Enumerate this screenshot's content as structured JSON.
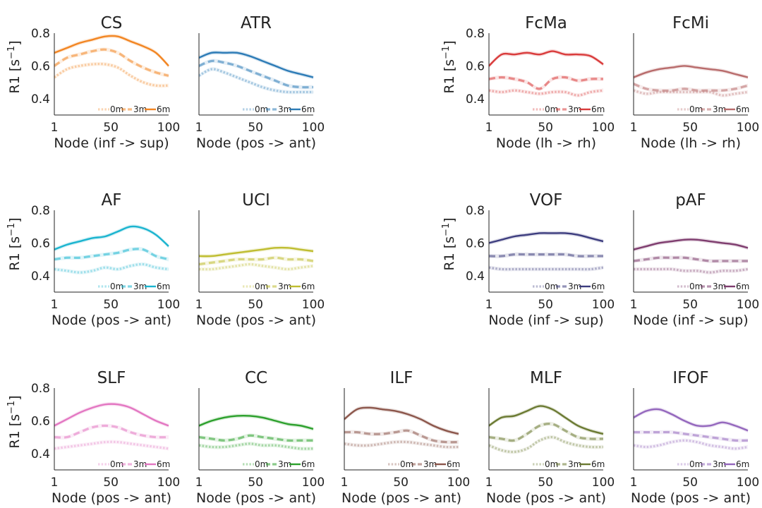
{
  "chart_data": {
    "type": "line",
    "layout": "small-multiples grid (3 rows x 5 columns)",
    "y_axis_label": "R1 [s",
    "y_axis_label_sup": "−1",
    "y_axis_label_close": "]",
    "ylim": [
      0.3,
      0.8
    ],
    "yticks": [
      "0.4",
      "0.6",
      "0.8"
    ],
    "xlim": [
      1,
      100
    ],
    "xticks": [
      "1",
      "50",
      "100"
    ],
    "legend_labels": [
      "0m",
      "3m",
      "6m"
    ],
    "legend_placement": "lower-right",
    "x_nodes": [
      1,
      12,
      23,
      34,
      45,
      56,
      67,
      78,
      89,
      100
    ],
    "panels": [
      {
        "row": 0,
        "col": 0,
        "title": "CS",
        "xlabel": "Node (inf -> sup)",
        "ylabels": true,
        "color": "#f28522",
        "series": [
          {
            "name": "0m",
            "values": [
              0.53,
              0.58,
              0.6,
              0.61,
              0.61,
              0.59,
              0.54,
              0.5,
              0.48,
              0.48
            ]
          },
          {
            "name": "3m",
            "values": [
              0.6,
              0.65,
              0.67,
              0.69,
              0.7,
              0.68,
              0.63,
              0.59,
              0.56,
              0.54
            ]
          },
          {
            "name": "6m",
            "values": [
              0.68,
              0.71,
              0.74,
              0.76,
              0.78,
              0.78,
              0.75,
              0.72,
              0.68,
              0.6
            ]
          }
        ]
      },
      {
        "row": 0,
        "col": 1,
        "title": "ATR",
        "xlabel": "Node (pos -> ant)",
        "ylabels": false,
        "color": "#2c7bb6",
        "series": [
          {
            "name": "0m",
            "values": [
              0.54,
              0.58,
              0.56,
              0.53,
              0.5,
              0.47,
              0.45,
              0.44,
              0.44,
              0.44
            ]
          },
          {
            "name": "3m",
            "values": [
              0.6,
              0.63,
              0.62,
              0.6,
              0.57,
              0.54,
              0.51,
              0.48,
              0.47,
              0.47
            ]
          },
          {
            "name": "6m",
            "values": [
              0.65,
              0.68,
              0.68,
              0.68,
              0.66,
              0.63,
              0.6,
              0.57,
              0.55,
              0.53
            ]
          }
        ]
      },
      {
        "row": 0,
        "col": 3,
        "title": "FcMa",
        "xlabel": "Node (lh -> rh)",
        "ylabels": true,
        "color": "#d93b3b",
        "series": [
          {
            "name": "0m",
            "values": [
              0.45,
              0.44,
              0.45,
              0.44,
              0.43,
              0.44,
              0.44,
              0.42,
              0.44,
              0.45
            ]
          },
          {
            "name": "3m",
            "values": [
              0.52,
              0.53,
              0.52,
              0.5,
              0.46,
              0.52,
              0.53,
              0.51,
              0.52,
              0.52
            ]
          },
          {
            "name": "6m",
            "values": [
              0.6,
              0.67,
              0.67,
              0.68,
              0.67,
              0.69,
              0.67,
              0.67,
              0.66,
              0.61
            ]
          }
        ]
      },
      {
        "row": 0,
        "col": 4,
        "title": "FcMi",
        "xlabel": "Node (lh -> rh)",
        "ylabels": false,
        "color": "#b86b6b",
        "series": [
          {
            "name": "0m",
            "values": [
              0.45,
              0.43,
              0.44,
              0.44,
              0.44,
              0.44,
              0.44,
              0.42,
              0.43,
              0.44
            ]
          },
          {
            "name": "3m",
            "values": [
              0.49,
              0.46,
              0.45,
              0.45,
              0.46,
              0.45,
              0.45,
              0.45,
              0.46,
              0.48
            ]
          },
          {
            "name": "6m",
            "values": [
              0.53,
              0.56,
              0.58,
              0.59,
              0.6,
              0.59,
              0.58,
              0.57,
              0.55,
              0.53
            ]
          }
        ]
      },
      {
        "row": 1,
        "col": 0,
        "title": "AF",
        "xlabel": "Node (pos -> ant)",
        "ylabels": true,
        "color": "#1ab4cf",
        "series": [
          {
            "name": "0m",
            "values": [
              0.44,
              0.43,
              0.42,
              0.43,
              0.45,
              0.44,
              0.46,
              0.47,
              0.45,
              0.44
            ]
          },
          {
            "name": "3m",
            "values": [
              0.5,
              0.51,
              0.51,
              0.52,
              0.53,
              0.54,
              0.56,
              0.56,
              0.52,
              0.5
            ]
          },
          {
            "name": "6m",
            "values": [
              0.56,
              0.59,
              0.61,
              0.63,
              0.64,
              0.67,
              0.7,
              0.69,
              0.65,
              0.58
            ]
          }
        ]
      },
      {
        "row": 1,
        "col": 1,
        "title": "UCI",
        "xlabel": "Node (pos -> ant)",
        "ylabels": false,
        "color": "#bfbd30",
        "series": [
          {
            "name": "0m",
            "values": [
              0.44,
              0.44,
              0.45,
              0.46,
              0.47,
              0.46,
              0.45,
              0.44,
              0.45,
              0.46
            ]
          },
          {
            "name": "3m",
            "values": [
              0.47,
              0.48,
              0.49,
              0.5,
              0.5,
              0.5,
              0.51,
              0.5,
              0.5,
              0.49
            ]
          },
          {
            "name": "6m",
            "values": [
              0.52,
              0.52,
              0.53,
              0.54,
              0.55,
              0.56,
              0.57,
              0.57,
              0.56,
              0.55
            ]
          }
        ]
      },
      {
        "row": 1,
        "col": 3,
        "title": "VOF",
        "xlabel": "Node (inf -> sup)",
        "ylabels": true,
        "color": "#3c3c7e",
        "series": [
          {
            "name": "0m",
            "values": [
              0.45,
              0.44,
              0.44,
              0.44,
              0.44,
              0.44,
              0.44,
              0.44,
              0.44,
              0.45
            ]
          },
          {
            "name": "3m",
            "values": [
              0.52,
              0.52,
              0.53,
              0.53,
              0.53,
              0.53,
              0.53,
              0.52,
              0.52,
              0.52
            ]
          },
          {
            "name": "6m",
            "values": [
              0.6,
              0.62,
              0.64,
              0.65,
              0.66,
              0.66,
              0.66,
              0.65,
              0.63,
              0.61
            ]
          }
        ]
      },
      {
        "row": 1,
        "col": 4,
        "title": "pAF",
        "xlabel": "Node (inf -> sup)",
        "ylabels": false,
        "color": "#7e3c6e",
        "series": [
          {
            "name": "0m",
            "values": [
              0.44,
              0.44,
              0.44,
              0.44,
              0.43,
              0.43,
              0.42,
              0.43,
              0.43,
              0.44
            ]
          },
          {
            "name": "3m",
            "values": [
              0.49,
              0.5,
              0.51,
              0.51,
              0.51,
              0.5,
              0.49,
              0.49,
              0.49,
              0.49
            ]
          },
          {
            "name": "6m",
            "values": [
              0.56,
              0.58,
              0.6,
              0.61,
              0.62,
              0.62,
              0.61,
              0.6,
              0.59,
              0.57
            ]
          }
        ]
      },
      {
        "row": 2,
        "col": 0,
        "title": "SLF",
        "xlabel": "Node (pos -> ant)",
        "ylabels": true,
        "color": "#e377c2",
        "series": [
          {
            "name": "0m",
            "values": [
              0.43,
              0.44,
              0.45,
              0.46,
              0.47,
              0.47,
              0.46,
              0.45,
              0.44,
              0.43
            ]
          },
          {
            "name": "3m",
            "values": [
              0.5,
              0.5,
              0.53,
              0.56,
              0.57,
              0.56,
              0.53,
              0.51,
              0.5,
              0.5
            ]
          },
          {
            "name": "6m",
            "values": [
              0.57,
              0.61,
              0.65,
              0.68,
              0.7,
              0.7,
              0.68,
              0.64,
              0.6,
              0.57
            ]
          }
        ]
      },
      {
        "row": 2,
        "col": 1,
        "title": "CC",
        "xlabel": "Node (pos -> ant)",
        "ylabels": false,
        "color": "#2ca02c",
        "series": [
          {
            "name": "0m",
            "values": [
              0.45,
              0.44,
              0.44,
              0.45,
              0.46,
              0.45,
              0.45,
              0.44,
              0.43,
              0.43
            ]
          },
          {
            "name": "3m",
            "values": [
              0.5,
              0.49,
              0.48,
              0.49,
              0.51,
              0.5,
              0.49,
              0.48,
              0.48,
              0.48
            ]
          },
          {
            "name": "6m",
            "values": [
              0.57,
              0.6,
              0.62,
              0.63,
              0.63,
              0.62,
              0.6,
              0.58,
              0.57,
              0.55
            ]
          }
        ]
      },
      {
        "row": 2,
        "col": 2,
        "title": "ILF",
        "xlabel": "Node (pos -> ant)",
        "ylabels": false,
        "color": "#8c564b",
        "series": [
          {
            "name": "0m",
            "values": [
              0.46,
              0.45,
              0.45,
              0.46,
              0.47,
              0.47,
              0.46,
              0.45,
              0.44,
              0.44
            ]
          },
          {
            "name": "3m",
            "values": [
              0.53,
              0.53,
              0.52,
              0.52,
              0.53,
              0.54,
              0.51,
              0.48,
              0.47,
              0.47
            ]
          },
          {
            "name": "6m",
            "values": [
              0.61,
              0.67,
              0.68,
              0.67,
              0.66,
              0.64,
              0.61,
              0.57,
              0.54,
              0.52
            ]
          }
        ]
      },
      {
        "row": 2,
        "col": 3,
        "title": "MLF",
        "xlabel": "Node (pos -> ant)",
        "ylabels": false,
        "color": "#6b7a32",
        "series": [
          {
            "name": "0m",
            "values": [
              0.45,
              0.42,
              0.41,
              0.43,
              0.48,
              0.5,
              0.47,
              0.45,
              0.44,
              0.44
            ]
          },
          {
            "name": "3m",
            "values": [
              0.5,
              0.49,
              0.48,
              0.52,
              0.57,
              0.58,
              0.54,
              0.5,
              0.49,
              0.49
            ]
          },
          {
            "name": "6m",
            "values": [
              0.57,
              0.62,
              0.63,
              0.66,
              0.69,
              0.67,
              0.62,
              0.57,
              0.54,
              0.52
            ]
          }
        ]
      },
      {
        "row": 2,
        "col": 4,
        "title": "IFOF",
        "xlabel": "Node (pos -> ant)",
        "ylabels": false,
        "color": "#9467bd",
        "series": [
          {
            "name": "0m",
            "values": [
              0.45,
              0.44,
              0.45,
              0.47,
              0.48,
              0.47,
              0.45,
              0.44,
              0.43,
              0.44
            ]
          },
          {
            "name": "3m",
            "values": [
              0.53,
              0.53,
              0.53,
              0.53,
              0.52,
              0.51,
              0.5,
              0.49,
              0.48,
              0.48
            ]
          },
          {
            "name": "6m",
            "values": [
              0.62,
              0.66,
              0.67,
              0.64,
              0.6,
              0.57,
              0.57,
              0.59,
              0.57,
              0.54
            ]
          }
        ]
      }
    ]
  }
}
